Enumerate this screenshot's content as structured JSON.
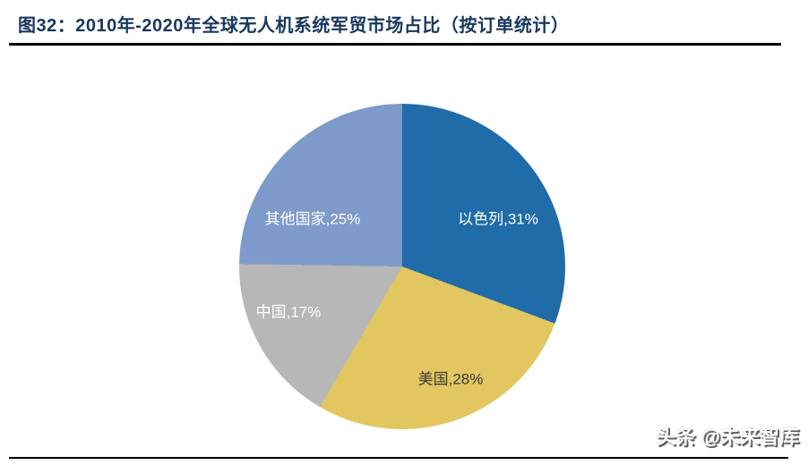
{
  "figure": {
    "title": "图32：2010年-2020年全球无人机系统军贸市场占比（按订单统计）",
    "title_color": "#17375E"
  },
  "watermark": {
    "text": "头条 @未来智库"
  },
  "chart_data": {
    "type": "pie",
    "title": "2010年-2020年全球无人机系统军贸市场占比（按订单统计）",
    "categories": [
      "以色列",
      "美国",
      "中国",
      "其他国家"
    ],
    "values": [
      31,
      28,
      17,
      25
    ],
    "unit": "%",
    "colors": [
      "#1F6CA8",
      "#E2C660",
      "#B7B7B7",
      "#7D9ACA"
    ],
    "labels": [
      "以色列,31%",
      "美国,28%",
      "中国,17%",
      "其他国家,25%"
    ],
    "label_colors": [
      "#FFFFFF",
      "#3A3A3A",
      "#FFFFFF",
      "#FFFFFF"
    ],
    "start_angle_deg": 0,
    "direction": "clockwise",
    "legend": "none",
    "data_labels": "category-and-percent-inside"
  }
}
